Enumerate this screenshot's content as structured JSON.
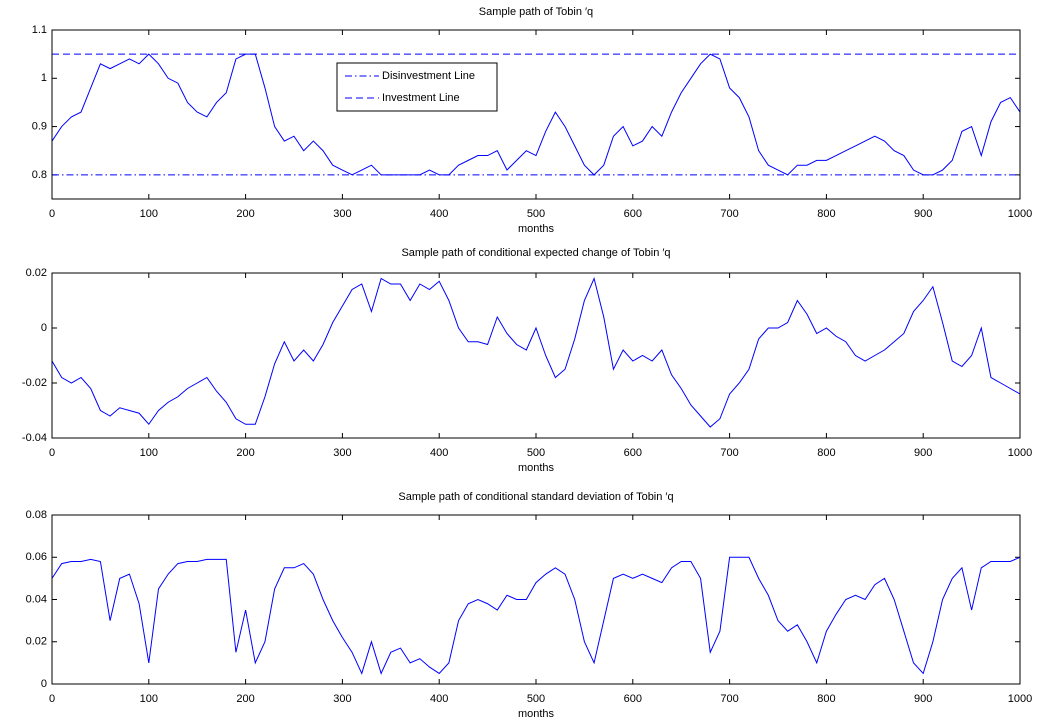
{
  "chart_data": [
    {
      "type": "line",
      "title": "Sample path of Tobin ′q",
      "x_label": "months",
      "x": [
        0,
        10,
        20,
        30,
        40,
        50,
        60,
        70,
        80,
        90,
        100,
        110,
        120,
        130,
        140,
        150,
        160,
        170,
        180,
        190,
        200,
        210,
        220,
        230,
        240,
        250,
        260,
        270,
        280,
        290,
        300,
        310,
        320,
        330,
        340,
        350,
        360,
        370,
        380,
        390,
        400,
        410,
        420,
        430,
        440,
        450,
        460,
        470,
        480,
        490,
        500,
        510,
        520,
        530,
        540,
        550,
        560,
        570,
        580,
        590,
        600,
        610,
        620,
        630,
        640,
        650,
        660,
        670,
        680,
        690,
        700,
        710,
        720,
        730,
        740,
        750,
        760,
        770,
        780,
        790,
        800,
        810,
        820,
        830,
        840,
        850,
        860,
        870,
        880,
        890,
        900,
        910,
        920,
        930,
        940,
        950,
        960,
        970,
        980,
        990,
        1000
      ],
      "xlim": [
        0,
        1000
      ],
      "xticks": [
        0,
        100,
        200,
        300,
        400,
        500,
        600,
        700,
        800,
        900,
        1000
      ],
      "ylim": [
        0.75,
        1.1
      ],
      "yticks": [
        0.8,
        0.9,
        1,
        1.1
      ],
      "grid": false,
      "legend": "upper center",
      "series": [
        {
          "color": "#0000ff",
          "values": [
            0.87,
            0.9,
            0.92,
            0.93,
            0.98,
            1.03,
            1.02,
            1.03,
            1.04,
            1.03,
            1.05,
            1.03,
            1.0,
            0.99,
            0.95,
            0.93,
            0.92,
            0.95,
            0.97,
            1.04,
            1.05,
            1.05,
            0.98,
            0.9,
            0.87,
            0.88,
            0.85,
            0.87,
            0.85,
            0.82,
            0.81,
            0.8,
            0.81,
            0.82,
            0.8,
            0.8,
            0.8,
            0.8,
            0.8,
            0.81,
            0.8,
            0.8,
            0.82,
            0.83,
            0.84,
            0.84,
            0.85,
            0.81,
            0.83,
            0.85,
            0.84,
            0.89,
            0.93,
            0.9,
            0.86,
            0.82,
            0.8,
            0.82,
            0.88,
            0.9,
            0.86,
            0.87,
            0.9,
            0.88,
            0.93,
            0.97,
            1.0,
            1.03,
            1.05,
            1.04,
            0.98,
            0.96,
            0.92,
            0.85,
            0.82,
            0.81,
            0.8,
            0.82,
            0.82,
            0.83,
            0.83,
            0.84,
            0.85,
            0.86,
            0.87,
            0.88,
            0.87,
            0.85,
            0.84,
            0.81,
            0.8,
            0.8,
            0.81,
            0.83,
            0.89,
            0.9,
            0.84,
            0.91,
            0.95,
            0.96,
            0.93
          ]
        }
      ],
      "hlines": [
        {
          "name": "Disinvestment Line",
          "value": 0.8,
          "color": "#0000ff",
          "dash": "dashdot"
        },
        {
          "name": "Investment Line",
          "value": 1.05,
          "color": "#0000ff",
          "dash": "dashed"
        }
      ]
    },
    {
      "type": "line",
      "title": "Sample path of conditional expected change of Tobin ′q",
      "x_label": "months",
      "x": [
        0,
        10,
        20,
        30,
        40,
        50,
        60,
        70,
        80,
        90,
        100,
        110,
        120,
        130,
        140,
        150,
        160,
        170,
        180,
        190,
        200,
        210,
        220,
        230,
        240,
        250,
        260,
        270,
        280,
        290,
        300,
        310,
        320,
        330,
        340,
        350,
        360,
        370,
        380,
        390,
        400,
        410,
        420,
        430,
        440,
        450,
        460,
        470,
        480,
        490,
        500,
        510,
        520,
        530,
        540,
        550,
        560,
        570,
        580,
        590,
        600,
        610,
        620,
        630,
        640,
        650,
        660,
        670,
        680,
        690,
        700,
        710,
        720,
        730,
        740,
        750,
        760,
        770,
        780,
        790,
        800,
        810,
        820,
        830,
        840,
        850,
        860,
        870,
        880,
        890,
        900,
        910,
        920,
        930,
        940,
        950,
        960,
        970,
        980,
        990,
        1000
      ],
      "xlim": [
        0,
        1000
      ],
      "xticks": [
        0,
        100,
        200,
        300,
        400,
        500,
        600,
        700,
        800,
        900,
        1000
      ],
      "ylim": [
        -0.04,
        0.02
      ],
      "yticks": [
        -0.04,
        -0.02,
        0,
        0.02
      ],
      "grid": false,
      "series": [
        {
          "color": "#0000ff",
          "values": [
            -0.012,
            -0.018,
            -0.02,
            -0.018,
            -0.022,
            -0.03,
            -0.032,
            -0.029,
            -0.03,
            -0.031,
            -0.035,
            -0.03,
            -0.027,
            -0.025,
            -0.022,
            -0.02,
            -0.018,
            -0.023,
            -0.027,
            -0.033,
            -0.035,
            -0.035,
            -0.025,
            -0.013,
            -0.005,
            -0.012,
            -0.008,
            -0.012,
            -0.006,
            0.002,
            0.008,
            0.014,
            0.016,
            0.006,
            0.018,
            0.016,
            0.016,
            0.01,
            0.016,
            0.014,
            0.017,
            0.01,
            0.0,
            -0.005,
            -0.005,
            -0.006,
            0.004,
            -0.002,
            -0.006,
            -0.008,
            0.0,
            -0.01,
            -0.018,
            -0.015,
            -0.004,
            0.01,
            0.018,
            0.004,
            -0.015,
            -0.008,
            -0.012,
            -0.01,
            -0.012,
            -0.008,
            -0.017,
            -0.022,
            -0.028,
            -0.032,
            -0.036,
            -0.033,
            -0.024,
            -0.02,
            -0.015,
            -0.004,
            0.0,
            0.0,
            0.002,
            0.01,
            0.005,
            -0.002,
            0.0,
            -0.003,
            -0.005,
            -0.01,
            -0.012,
            -0.01,
            -0.008,
            -0.005,
            -0.002,
            0.006,
            0.01,
            0.015,
            0.002,
            -0.012,
            -0.014,
            -0.01,
            0.0,
            -0.018,
            -0.02,
            -0.022,
            -0.024
          ]
        }
      ]
    },
    {
      "type": "line",
      "title": "Sample path of conditional standard deviation of Tobin ′q",
      "x_label": "months",
      "x": [
        0,
        10,
        20,
        30,
        40,
        50,
        60,
        70,
        80,
        90,
        100,
        110,
        120,
        130,
        140,
        150,
        160,
        170,
        180,
        190,
        200,
        210,
        220,
        230,
        240,
        250,
        260,
        270,
        280,
        290,
        300,
        310,
        320,
        330,
        340,
        350,
        360,
        370,
        380,
        390,
        400,
        410,
        420,
        430,
        440,
        450,
        460,
        470,
        480,
        490,
        500,
        510,
        520,
        530,
        540,
        550,
        560,
        570,
        580,
        590,
        600,
        610,
        620,
        630,
        640,
        650,
        660,
        670,
        680,
        690,
        700,
        710,
        720,
        730,
        740,
        750,
        760,
        770,
        780,
        790,
        800,
        810,
        820,
        830,
        840,
        850,
        860,
        870,
        880,
        890,
        900,
        910,
        920,
        930,
        940,
        950,
        960,
        970,
        980,
        990,
        1000
      ],
      "xlim": [
        0,
        1000
      ],
      "xticks": [
        0,
        100,
        200,
        300,
        400,
        500,
        600,
        700,
        800,
        900,
        1000
      ],
      "ylim": [
        0,
        0.08
      ],
      "yticks": [
        0,
        0.02,
        0.04,
        0.06,
        0.08
      ],
      "grid": false,
      "series": [
        {
          "color": "#0000ff",
          "values": [
            0.05,
            0.057,
            0.058,
            0.058,
            0.059,
            0.058,
            0.03,
            0.05,
            0.052,
            0.038,
            0.01,
            0.045,
            0.052,
            0.057,
            0.058,
            0.058,
            0.059,
            0.059,
            0.059,
            0.015,
            0.035,
            0.01,
            0.02,
            0.045,
            0.055,
            0.055,
            0.057,
            0.052,
            0.04,
            0.03,
            0.022,
            0.015,
            0.005,
            0.02,
            0.005,
            0.015,
            0.017,
            0.01,
            0.012,
            0.008,
            0.005,
            0.01,
            0.03,
            0.038,
            0.04,
            0.038,
            0.035,
            0.042,
            0.04,
            0.04,
            0.048,
            0.052,
            0.055,
            0.052,
            0.04,
            0.02,
            0.01,
            0.03,
            0.05,
            0.052,
            0.05,
            0.052,
            0.05,
            0.048,
            0.055,
            0.058,
            0.058,
            0.05,
            0.015,
            0.025,
            0.06,
            0.06,
            0.06,
            0.05,
            0.042,
            0.03,
            0.025,
            0.028,
            0.02,
            0.01,
            0.025,
            0.033,
            0.04,
            0.042,
            0.04,
            0.047,
            0.05,
            0.04,
            0.025,
            0.01,
            0.005,
            0.02,
            0.04,
            0.05,
            0.055,
            0.035,
            0.055,
            0.058,
            0.058,
            0.058,
            0.06
          ]
        }
      ]
    }
  ]
}
